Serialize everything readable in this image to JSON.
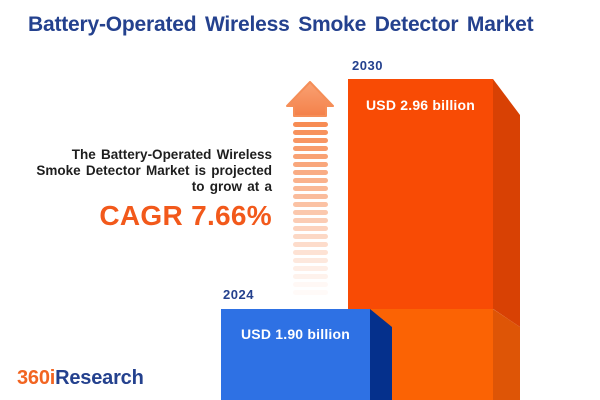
{
  "title": "Battery-Operated Wireless Smoke Detector Market",
  "description": "The Battery-Operated Wireless\nSmoke Detector Market is projected\nto grow at a",
  "cagr_label": "CAGR 7.66%",
  "bars": {
    "b2024": {
      "year": "2024",
      "label": "USD 1.90 billion"
    },
    "b2030": {
      "year": "2030",
      "label": "USD 2.96 billion"
    }
  },
  "logo": {
    "part1": "360i",
    "part2": "Research"
  },
  "icons": {
    "growth_arrow": "striped-up-arrow"
  },
  "colors": {
    "title_blue": "#24418e",
    "cagr_orange": "#f2591b",
    "bar_2030_front": "#f84b05",
    "bar_2030_side": "#d84104",
    "bar_2030_base_front": "#fb6304",
    "bar_2030_base_side": "#de5506",
    "bar_2024_front": "#2e71e4",
    "bar_2024_side": "#05308c",
    "arrow_orange": "#f78c54",
    "logo_orange": "#f26522",
    "value_text": "#ffffff",
    "body_text": "#1e1e1e"
  },
  "chart_data": {
    "type": "bar",
    "title": "Battery-Operated Wireless Smoke Detector Market",
    "categories": [
      "2024",
      "2030"
    ],
    "values": [
      1.9,
      2.96
    ],
    "unit": "USD billion",
    "value_labels": [
      "USD 1.90 billion",
      "USD 2.96 billion"
    ],
    "cagr_percent": 7.66,
    "annotations": [
      "The Battery-Operated Wireless Smoke Detector Market is projected to grow at a CAGR 7.66%"
    ],
    "legend": "none",
    "grid": false,
    "style": "3d-cuboid-infographic"
  }
}
